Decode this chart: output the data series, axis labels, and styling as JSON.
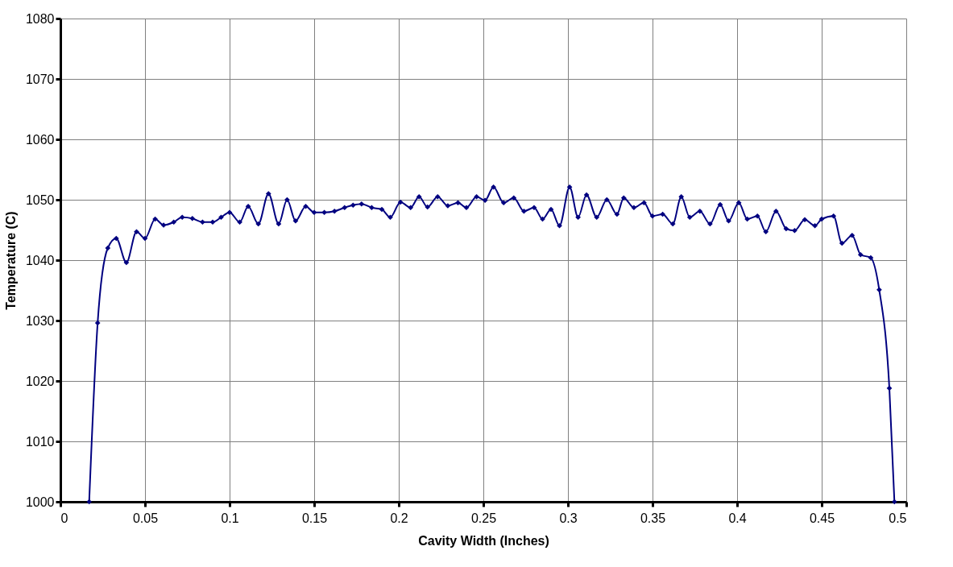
{
  "chart_data": {
    "type": "line",
    "xlabel": "Cavity Width (Inches)",
    "ylabel": "Temperature (C)",
    "xlim": [
      0,
      0.5
    ],
    "xticks": [
      0,
      0.05,
      0.1,
      0.15,
      0.2,
      0.25,
      0.3,
      0.35,
      0.4,
      0.45,
      0.5
    ],
    "ylim": [
      1000,
      1080
    ],
    "yticks": [
      1000,
      1010,
      1020,
      1030,
      1040,
      1050,
      1060,
      1070,
      1080
    ],
    "grid": true,
    "marker": "diamond",
    "line_style": "solid",
    "series": [
      {
        "color": "#000080",
        "x": [
          0.017,
          0.022,
          0.028,
          0.033,
          0.039,
          0.045,
          0.05,
          0.056,
          0.061,
          0.067,
          0.072,
          0.078,
          0.084,
          0.09,
          0.095,
          0.1,
          0.106,
          0.111,
          0.117,
          0.123,
          0.129,
          0.134,
          0.139,
          0.145,
          0.15,
          0.156,
          0.162,
          0.168,
          0.173,
          0.178,
          0.184,
          0.19,
          0.195,
          0.201,
          0.207,
          0.212,
          0.217,
          0.223,
          0.229,
          0.235,
          0.24,
          0.246,
          0.251,
          0.256,
          0.262,
          0.268,
          0.274,
          0.28,
          0.285,
          0.29,
          0.295,
          0.301,
          0.306,
          0.311,
          0.317,
          0.323,
          0.329,
          0.333,
          0.339,
          0.345,
          0.35,
          0.356,
          0.362,
          0.367,
          0.372,
          0.378,
          0.384,
          0.39,
          0.395,
          0.401,
          0.406,
          0.412,
          0.417,
          0.423,
          0.429,
          0.434,
          0.44,
          0.446,
          0.45,
          0.457,
          0.462,
          0.468,
          0.473,
          0.479,
          0.484,
          0.49,
          0.493
        ],
        "values": [
          1000,
          1029.6,
          1042,
          1043.6,
          1039.6,
          1044.7,
          1043.6,
          1046.8,
          1045.8,
          1046.3,
          1047.1,
          1046.9,
          1046.3,
          1046.3,
          1047.1,
          1047.9,
          1046.3,
          1048.9,
          1046,
          1051,
          1046,
          1050,
          1046.5,
          1048.9,
          1047.9,
          1047.9,
          1048.1,
          1048.7,
          1049.1,
          1049.3,
          1048.7,
          1048.4,
          1047.1,
          1049.6,
          1048.7,
          1050.5,
          1048.8,
          1050.5,
          1049,
          1049.5,
          1048.7,
          1050.5,
          1049.9,
          1052.1,
          1049.5,
          1050.3,
          1048.1,
          1048.7,
          1046.8,
          1048.4,
          1045.7,
          1052.1,
          1047.1,
          1050.8,
          1047.1,
          1050,
          1047.6,
          1050.3,
          1048.7,
          1049.5,
          1047.3,
          1047.6,
          1046,
          1050.5,
          1047.1,
          1048.1,
          1046,
          1049.2,
          1046.5,
          1049.5,
          1046.8,
          1047.3,
          1044.7,
          1048.1,
          1045.2,
          1044.9,
          1046.7,
          1045.7,
          1046.8,
          1047.3,
          1042.8,
          1044.1,
          1040.9,
          1040.4,
          1035.1,
          1018.8,
          1000
        ]
      }
    ]
  }
}
